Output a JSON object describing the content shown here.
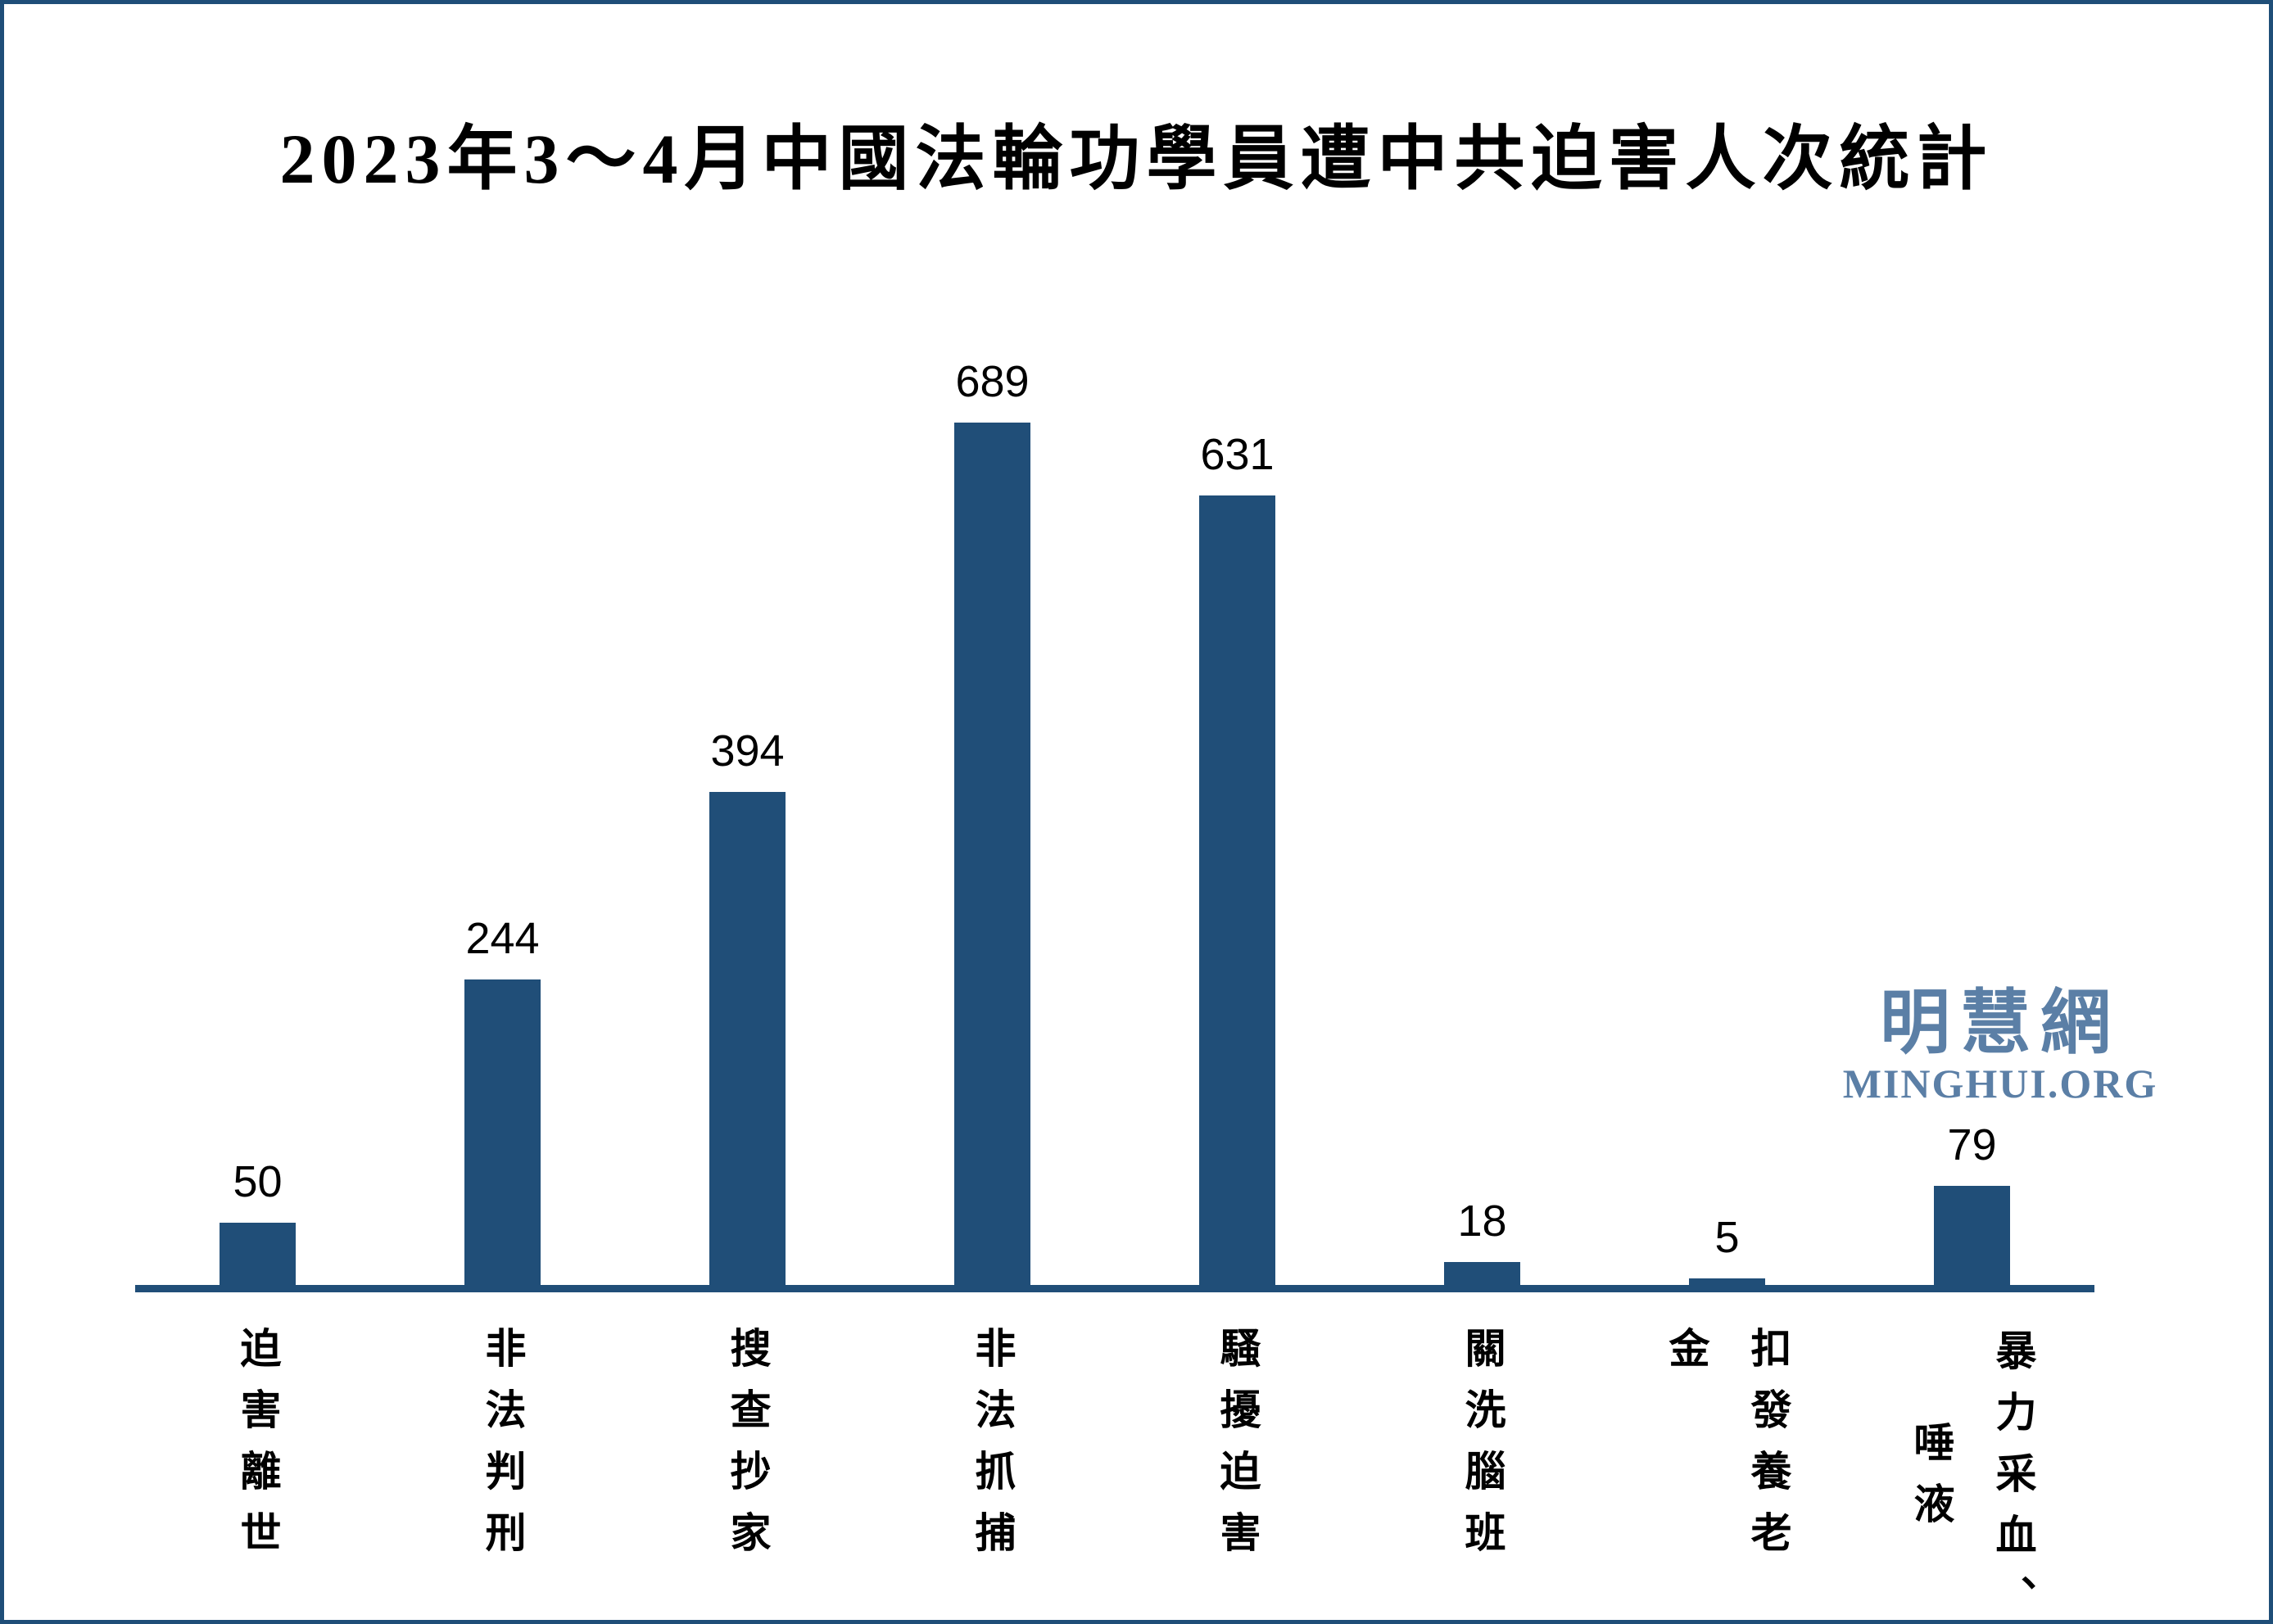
{
  "chart_data": {
    "type": "bar",
    "title": "2023年3～4月中國法輪功學員遭中共迫害人次統計",
    "categories": [
      "迫害離世",
      "非法判刑",
      "搜查抄家",
      "非法抓捕",
      "騷擾迫害",
      "關洗腦班",
      "扣發養老金",
      "暴力采血、唾液"
    ],
    "values": [
      50,
      244,
      394,
      689,
      631,
      18,
      5,
      79
    ],
    "xlabel": "",
    "ylabel": "",
    "ylim": [
      0,
      700
    ],
    "grid": false,
    "legend": false,
    "bar_color": "#204e78",
    "axis_color": "#204e78",
    "value_label_color": "#000000",
    "category_label_color": "#000000",
    "category_label_orientation": "vertical"
  },
  "watermark": {
    "cn": "明慧網",
    "en": "MINGHUI.ORG",
    "color": "#5b7fa6"
  }
}
